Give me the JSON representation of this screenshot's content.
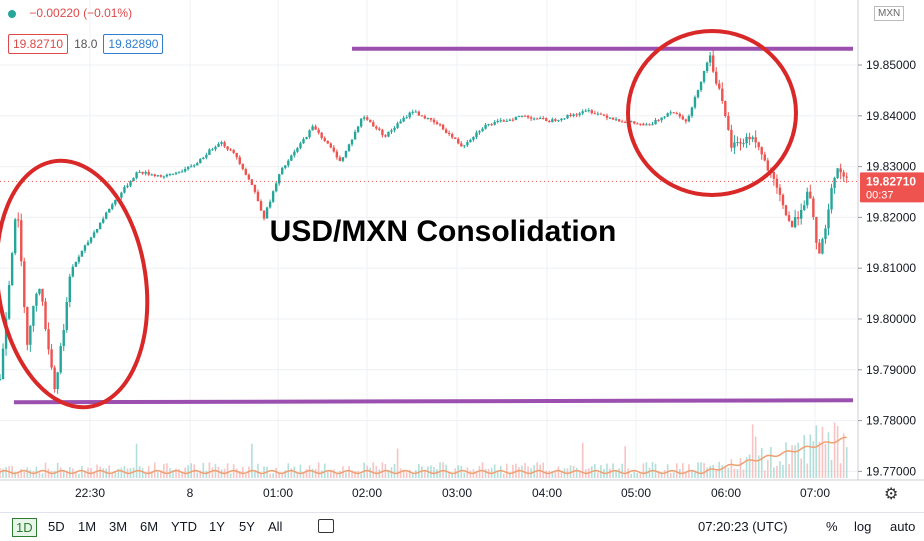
{
  "header": {
    "change_text": "−0.00220 (−0.01%)",
    "bid": "19.82710",
    "spread": "18.0",
    "ask": "19.82890",
    "symbol_badge": "MXN"
  },
  "chart_data": {
    "type": "candlestick",
    "title": "USD/MXN Consolidation",
    "y_ticks": [
      "19.85000",
      "19.84000",
      "19.83000",
      "19.82000",
      "19.81000",
      "19.80000",
      "19.79000",
      "19.78000",
      "19.77000"
    ],
    "ylim": [
      19.7675,
      19.8605
    ],
    "x_ticks": [
      "22:30",
      "8",
      "01:00",
      "02:00",
      "03:00",
      "04:00",
      "05:00",
      "06:00",
      "07:00"
    ],
    "last_price": "19.82710",
    "countdown": "00:37",
    "levels": [
      {
        "name": "resistance",
        "value": 19.8532,
        "color": "#9b4fae"
      },
      {
        "name": "support",
        "value": 19.784,
        "color": "#9b4fae"
      }
    ],
    "price_path": [
      {
        "t": 0,
        "p": 19.788
      },
      {
        "t": 0.3,
        "p": 19.823
      },
      {
        "t": 0.5,
        "p": 19.795
      },
      {
        "t": 0.7,
        "p": 19.808
      },
      {
        "t": 1.0,
        "p": 19.786
      },
      {
        "t": 1.3,
        "p": 19.81
      },
      {
        "t": 2.0,
        "p": 19.822
      },
      {
        "t": 2.5,
        "p": 19.829
      },
      {
        "t": 3.0,
        "p": 19.828
      },
      {
        "t": 3.5,
        "p": 19.83
      },
      {
        "t": 4.0,
        "p": 19.835
      },
      {
        "t": 4.3,
        "p": 19.832
      },
      {
        "t": 4.6,
        "p": 19.826
      },
      {
        "t": 4.8,
        "p": 19.82
      },
      {
        "t": 5.1,
        "p": 19.829
      },
      {
        "t": 5.7,
        "p": 19.838
      },
      {
        "t": 6.2,
        "p": 19.831
      },
      {
        "t": 6.6,
        "p": 19.84
      },
      {
        "t": 7.0,
        "p": 19.836
      },
      {
        "t": 7.5,
        "p": 19.841
      },
      {
        "t": 8.0,
        "p": 19.838
      },
      {
        "t": 8.4,
        "p": 19.834
      },
      {
        "t": 8.8,
        "p": 19.838
      },
      {
        "t": 9.5,
        "p": 19.84
      },
      {
        "t": 10.0,
        "p": 19.839
      },
      {
        "t": 10.7,
        "p": 19.841
      },
      {
        "t": 11.3,
        "p": 19.839
      },
      {
        "t": 11.8,
        "p": 19.838
      },
      {
        "t": 12.2,
        "p": 19.841
      },
      {
        "t": 12.5,
        "p": 19.839
      },
      {
        "t": 12.9,
        "p": 19.852
      },
      {
        "t": 13.05,
        "p": 19.846
      },
      {
        "t": 13.3,
        "p": 19.834
      },
      {
        "t": 13.7,
        "p": 19.836
      },
      {
        "t": 14.1,
        "p": 19.826
      },
      {
        "t": 14.4,
        "p": 19.818
      },
      {
        "t": 14.7,
        "p": 19.825
      },
      {
        "t": 14.9,
        "p": 19.812
      },
      {
        "t": 15.2,
        "p": 19.83
      },
      {
        "t": 15.45,
        "p": 19.827
      }
    ],
    "volume_avg_color": "#f0a070",
    "up_color": "#26a69a",
    "down_color": "#ef5350"
  },
  "annotations": {
    "circles_color": "#d92828",
    "line_color": "#9b4fae"
  },
  "toolbar": {
    "timeframes": [
      "1D",
      "5D",
      "1M",
      "3M",
      "6M",
      "YTD",
      "1Y",
      "5Y",
      "All"
    ],
    "active_timeframe": "1D",
    "clock": "07:20:23 (UTC)",
    "percent": "%",
    "log": "log",
    "auto": "auto"
  }
}
